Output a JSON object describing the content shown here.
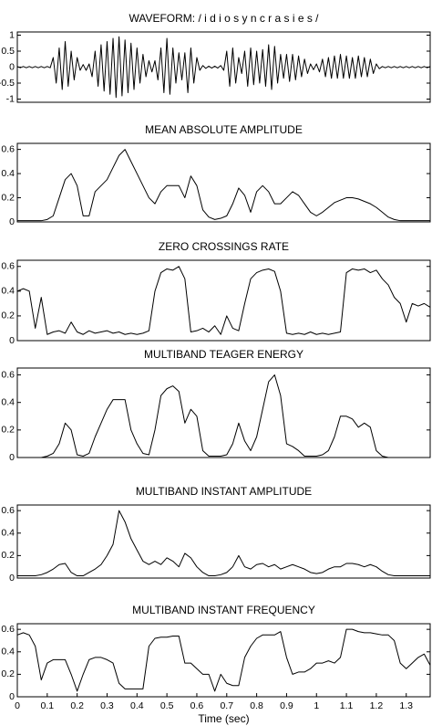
{
  "chart_data": [
    {
      "type": "line",
      "title": "WAVEFORM: / i d i o s y n c r a s i e s /",
      "xlim": [
        0,
        1.38
      ],
      "ylim": [
        -1.1,
        1.1
      ],
      "yticks": [
        1,
        0.5,
        0,
        -0.5,
        -1
      ],
      "x": [
        0,
        0.01,
        0.02,
        0.03,
        0.04,
        0.05,
        0.06,
        0.07,
        0.08,
        0.09,
        0.1,
        0.11,
        0.12,
        0.13,
        0.14,
        0.15,
        0.16,
        0.17,
        0.18,
        0.19,
        0.2,
        0.21,
        0.22,
        0.23,
        0.24,
        0.25,
        0.26,
        0.27,
        0.28,
        0.29,
        0.3,
        0.31,
        0.32,
        0.33,
        0.34,
        0.35,
        0.36,
        0.37,
        0.38,
        0.39,
        0.4,
        0.41,
        0.42,
        0.43,
        0.44,
        0.45,
        0.46,
        0.47,
        0.48,
        0.49,
        0.5,
        0.51,
        0.52,
        0.53,
        0.54,
        0.55,
        0.56,
        0.57,
        0.58,
        0.59,
        0.6,
        0.61,
        0.62,
        0.63,
        0.64,
        0.65,
        0.66,
        0.67,
        0.68,
        0.69,
        0.7,
        0.71,
        0.72,
        0.73,
        0.74,
        0.75,
        0.76,
        0.77,
        0.78,
        0.79,
        0.8,
        0.81,
        0.82,
        0.83,
        0.84,
        0.85,
        0.86,
        0.87,
        0.88,
        0.89,
        0.9,
        0.91,
        0.92,
        0.93,
        0.94,
        0.95,
        0.96,
        0.97,
        0.98,
        0.99,
        1.0,
        1.01,
        1.02,
        1.03,
        1.04,
        1.05,
        1.06,
        1.07,
        1.08,
        1.09,
        1.1,
        1.11,
        1.12,
        1.13,
        1.14,
        1.15,
        1.16,
        1.17,
        1.18,
        1.19,
        1.2,
        1.21,
        1.22,
        1.23,
        1.24,
        1.25,
        1.26,
        1.27,
        1.28,
        1.29,
        1.3,
        1.31,
        1.32,
        1.33,
        1.34,
        1.35,
        1.36,
        1.37,
        1.38
      ],
      "values": [
        0.02,
        -0.02,
        0.02,
        -0.02,
        0.02,
        -0.02,
        0.02,
        -0.02,
        0.02,
        -0.02,
        0.02,
        -0.02,
        0.3,
        -0.5,
        0.6,
        -0.7,
        0.8,
        -0.6,
        0.5,
        -0.4,
        0.3,
        -0.1,
        0.08,
        -0.1,
        0.1,
        -0.3,
        0.5,
        -0.6,
        0.7,
        -0.75,
        0.8,
        -0.85,
        0.9,
        -0.95,
        0.95,
        -0.9,
        0.85,
        -0.8,
        0.75,
        -0.7,
        0.6,
        -0.5,
        0.4,
        -0.3,
        0.2,
        -0.15,
        0.2,
        -0.4,
        0.6,
        -0.8,
        0.9,
        -0.85,
        0.6,
        -0.5,
        0.45,
        -0.4,
        0.45,
        -0.8,
        0.6,
        -0.5,
        0.3,
        -0.1,
        0.05,
        -0.04,
        0.03,
        -0.03,
        0.03,
        -0.03,
        0.05,
        -0.1,
        0.5,
        -0.6,
        0.6,
        -0.5,
        0.3,
        -0.2,
        0.5,
        -0.6,
        0.6,
        -0.55,
        0.5,
        -0.5,
        0.55,
        -0.6,
        0.7,
        -0.7,
        0.65,
        -0.5,
        0.4,
        -0.35,
        0.4,
        -0.45,
        0.4,
        -0.4,
        0.35,
        -0.3,
        0.25,
        -0.2,
        0.1,
        -0.08,
        0.1,
        -0.15,
        0.25,
        -0.3,
        0.3,
        -0.35,
        0.35,
        -0.35,
        0.4,
        -0.35,
        0.35,
        -0.35,
        0.3,
        -0.35,
        0.35,
        -0.3,
        0.3,
        -0.3,
        0.25,
        -0.2,
        0.1,
        -0.05,
        0.02,
        -0.02,
        0.02,
        -0.02,
        0.02,
        -0.02,
        0.02,
        -0.02,
        0.02,
        -0.02,
        0.02,
        -0.02,
        0.02,
        -0.02,
        0.02,
        -0.02,
        0.02
      ]
    },
    {
      "type": "line",
      "title": "MEAN ABSOLUTE AMPLITUDE",
      "xlim": [
        0,
        1.38
      ],
      "ylim": [
        0,
        0.65
      ],
      "yticks": [
        0,
        0.2,
        0.4,
        0.6
      ],
      "x": [
        0,
        0.02,
        0.04,
        0.06,
        0.08,
        0.1,
        0.12,
        0.14,
        0.16,
        0.18,
        0.2,
        0.22,
        0.24,
        0.26,
        0.28,
        0.3,
        0.32,
        0.34,
        0.36,
        0.38,
        0.4,
        0.42,
        0.44,
        0.46,
        0.48,
        0.5,
        0.52,
        0.54,
        0.56,
        0.58,
        0.6,
        0.62,
        0.64,
        0.66,
        0.68,
        0.7,
        0.72,
        0.74,
        0.76,
        0.78,
        0.8,
        0.82,
        0.84,
        0.86,
        0.88,
        0.9,
        0.92,
        0.94,
        0.96,
        0.98,
        1.0,
        1.02,
        1.04,
        1.06,
        1.08,
        1.1,
        1.12,
        1.14,
        1.16,
        1.18,
        1.2,
        1.22,
        1.24,
        1.26,
        1.28,
        1.3,
        1.32,
        1.34,
        1.36,
        1.38
      ],
      "values": [
        0.01,
        0.01,
        0.01,
        0.01,
        0.01,
        0.02,
        0.05,
        0.2,
        0.35,
        0.4,
        0.3,
        0.05,
        0.05,
        0.25,
        0.3,
        0.35,
        0.45,
        0.55,
        0.6,
        0.5,
        0.4,
        0.3,
        0.2,
        0.15,
        0.25,
        0.3,
        0.3,
        0.3,
        0.2,
        0.38,
        0.3,
        0.1,
        0.04,
        0.02,
        0.03,
        0.05,
        0.15,
        0.28,
        0.22,
        0.08,
        0.25,
        0.3,
        0.25,
        0.15,
        0.15,
        0.2,
        0.25,
        0.22,
        0.15,
        0.08,
        0.05,
        0.08,
        0.12,
        0.16,
        0.18,
        0.2,
        0.2,
        0.19,
        0.17,
        0.15,
        0.12,
        0.08,
        0.04,
        0.02,
        0.01,
        0.01,
        0.01,
        0.01,
        0.01,
        0.01
      ]
    },
    {
      "type": "line",
      "title": "ZERO CROSSINGS RATE",
      "xlim": [
        0,
        1.38
      ],
      "ylim": [
        0,
        0.65
      ],
      "yticks": [
        0,
        0.2,
        0.4,
        0.6
      ],
      "x": [
        0,
        0.02,
        0.04,
        0.06,
        0.08,
        0.1,
        0.12,
        0.14,
        0.16,
        0.18,
        0.2,
        0.22,
        0.24,
        0.26,
        0.28,
        0.3,
        0.32,
        0.34,
        0.36,
        0.38,
        0.4,
        0.42,
        0.44,
        0.46,
        0.48,
        0.5,
        0.52,
        0.54,
        0.56,
        0.58,
        0.6,
        0.62,
        0.64,
        0.66,
        0.68,
        0.7,
        0.72,
        0.74,
        0.76,
        0.78,
        0.8,
        0.82,
        0.84,
        0.86,
        0.88,
        0.9,
        0.92,
        0.94,
        0.96,
        0.98,
        1.0,
        1.02,
        1.04,
        1.06,
        1.08,
        1.1,
        1.12,
        1.14,
        1.16,
        1.18,
        1.2,
        1.22,
        1.24,
        1.26,
        1.28,
        1.3,
        1.32,
        1.34,
        1.36,
        1.38
      ],
      "values": [
        0.4,
        0.42,
        0.4,
        0.1,
        0.35,
        0.05,
        0.07,
        0.08,
        0.06,
        0.15,
        0.07,
        0.05,
        0.08,
        0.06,
        0.07,
        0.08,
        0.06,
        0.07,
        0.05,
        0.06,
        0.05,
        0.06,
        0.08,
        0.4,
        0.55,
        0.58,
        0.57,
        0.6,
        0.5,
        0.07,
        0.08,
        0.1,
        0.07,
        0.12,
        0.05,
        0.2,
        0.1,
        0.08,
        0.3,
        0.5,
        0.55,
        0.57,
        0.58,
        0.56,
        0.4,
        0.06,
        0.05,
        0.06,
        0.05,
        0.07,
        0.05,
        0.06,
        0.05,
        0.06,
        0.07,
        0.55,
        0.58,
        0.57,
        0.58,
        0.55,
        0.57,
        0.5,
        0.45,
        0.35,
        0.3,
        0.15,
        0.3,
        0.28,
        0.3,
        0.27
      ]
    },
    {
      "type": "line",
      "title": "MULTIBAND TEAGER ENERGY",
      "xlim": [
        0,
        1.38
      ],
      "ylim": [
        0,
        0.65
      ],
      "yticks": [
        0,
        0.2,
        0.4,
        0.6
      ],
      "x": [
        0,
        0.02,
        0.04,
        0.06,
        0.08,
        0.1,
        0.12,
        0.14,
        0.16,
        0.18,
        0.2,
        0.22,
        0.24,
        0.26,
        0.28,
        0.3,
        0.32,
        0.34,
        0.36,
        0.38,
        0.4,
        0.42,
        0.44,
        0.46,
        0.48,
        0.5,
        0.52,
        0.54,
        0.56,
        0.58,
        0.6,
        0.62,
        0.64,
        0.66,
        0.68,
        0.7,
        0.72,
        0.74,
        0.76,
        0.78,
        0.8,
        0.82,
        0.84,
        0.86,
        0.88,
        0.9,
        0.92,
        0.94,
        0.96,
        0.98,
        1.0,
        1.02,
        1.04,
        1.06,
        1.08,
        1.1,
        1.12,
        1.14,
        1.16,
        1.18,
        1.2,
        1.22,
        1.24,
        1.26,
        1.28,
        1.3,
        1.32,
        1.34,
        1.36,
        1.38
      ],
      "values": [
        0,
        0,
        0,
        0,
        0,
        0.01,
        0.03,
        0.1,
        0.25,
        0.2,
        0.02,
        0.01,
        0.03,
        0.15,
        0.25,
        0.35,
        0.42,
        0.42,
        0.42,
        0.2,
        0.1,
        0.03,
        0.02,
        0.2,
        0.45,
        0.5,
        0.52,
        0.48,
        0.25,
        0.35,
        0.3,
        0.05,
        0.01,
        0.01,
        0.01,
        0.02,
        0.1,
        0.25,
        0.12,
        0.05,
        0.15,
        0.35,
        0.55,
        0.6,
        0.45,
        0.1,
        0.08,
        0.05,
        0.01,
        0.01,
        0.01,
        0.02,
        0.05,
        0.15,
        0.3,
        0.3,
        0.28,
        0.22,
        0.25,
        0.22,
        0.05,
        0.01,
        0,
        0,
        0,
        0,
        0,
        0,
        0,
        0
      ]
    },
    {
      "type": "line",
      "title": "MULTIBAND INSTANT AMPLITUDE",
      "xlim": [
        0,
        1.38
      ],
      "ylim": [
        0,
        0.65
      ],
      "yticks": [
        0,
        0.2,
        0.4,
        0.6
      ],
      "x": [
        0,
        0.02,
        0.04,
        0.06,
        0.08,
        0.1,
        0.12,
        0.14,
        0.16,
        0.18,
        0.2,
        0.22,
        0.24,
        0.26,
        0.28,
        0.3,
        0.32,
        0.34,
        0.36,
        0.38,
        0.4,
        0.42,
        0.44,
        0.46,
        0.48,
        0.5,
        0.52,
        0.54,
        0.56,
        0.58,
        0.6,
        0.62,
        0.64,
        0.66,
        0.68,
        0.7,
        0.72,
        0.74,
        0.76,
        0.78,
        0.8,
        0.82,
        0.84,
        0.86,
        0.88,
        0.9,
        0.92,
        0.94,
        0.96,
        0.98,
        1.0,
        1.02,
        1.04,
        1.06,
        1.08,
        1.1,
        1.12,
        1.14,
        1.16,
        1.18,
        1.2,
        1.22,
        1.24,
        1.26,
        1.28,
        1.3,
        1.32,
        1.34,
        1.36,
        1.38
      ],
      "values": [
        0.02,
        0.02,
        0.02,
        0.02,
        0.03,
        0.05,
        0.08,
        0.12,
        0.13,
        0.05,
        0.02,
        0.02,
        0.05,
        0.08,
        0.12,
        0.2,
        0.3,
        0.6,
        0.5,
        0.35,
        0.25,
        0.15,
        0.12,
        0.15,
        0.12,
        0.18,
        0.15,
        0.1,
        0.22,
        0.18,
        0.1,
        0.05,
        0.02,
        0.02,
        0.03,
        0.05,
        0.1,
        0.2,
        0.1,
        0.08,
        0.12,
        0.13,
        0.1,
        0.12,
        0.08,
        0.1,
        0.12,
        0.1,
        0.08,
        0.05,
        0.04,
        0.05,
        0.08,
        0.1,
        0.1,
        0.13,
        0.13,
        0.12,
        0.1,
        0.12,
        0.1,
        0.06,
        0.03,
        0.02,
        0.02,
        0.02,
        0.02,
        0.02,
        0.02,
        0.02
      ]
    },
    {
      "type": "line",
      "title": "MULTIBAND INSTANT FREQUENCY",
      "xlabel": "Time (sec)",
      "xlim": [
        0,
        1.38
      ],
      "ylim": [
        0,
        0.65
      ],
      "yticks": [
        0,
        0.2,
        0.4,
        0.6
      ],
      "xticks": [
        0,
        0.1,
        0.2,
        0.3,
        0.4,
        0.5,
        0.6,
        0.7,
        0.8,
        0.9,
        1,
        1.1,
        1.2,
        1.3
      ],
      "x": [
        0,
        0.02,
        0.04,
        0.06,
        0.08,
        0.1,
        0.12,
        0.14,
        0.16,
        0.18,
        0.2,
        0.22,
        0.24,
        0.26,
        0.28,
        0.3,
        0.32,
        0.34,
        0.36,
        0.38,
        0.4,
        0.42,
        0.44,
        0.46,
        0.48,
        0.5,
        0.52,
        0.54,
        0.56,
        0.58,
        0.6,
        0.62,
        0.64,
        0.66,
        0.68,
        0.7,
        0.72,
        0.74,
        0.76,
        0.78,
        0.8,
        0.82,
        0.84,
        0.86,
        0.88,
        0.9,
        0.92,
        0.94,
        0.96,
        0.98,
        1.0,
        1.02,
        1.04,
        1.06,
        1.08,
        1.1,
        1.12,
        1.14,
        1.16,
        1.18,
        1.2,
        1.22,
        1.24,
        1.26,
        1.28,
        1.3,
        1.32,
        1.34,
        1.36,
        1.38
      ],
      "values": [
        0.55,
        0.57,
        0.55,
        0.45,
        0.15,
        0.3,
        0.33,
        0.33,
        0.33,
        0.2,
        0.05,
        0.2,
        0.33,
        0.35,
        0.35,
        0.33,
        0.3,
        0.12,
        0.07,
        0.07,
        0.07,
        0.07,
        0.45,
        0.52,
        0.53,
        0.53,
        0.54,
        0.54,
        0.3,
        0.3,
        0.25,
        0.2,
        0.2,
        0.05,
        0.2,
        0.12,
        0.1,
        0.1,
        0.35,
        0.45,
        0.52,
        0.55,
        0.55,
        0.55,
        0.58,
        0.35,
        0.2,
        0.22,
        0.22,
        0.25,
        0.3,
        0.3,
        0.32,
        0.3,
        0.35,
        0.6,
        0.6,
        0.58,
        0.57,
        0.57,
        0.56,
        0.55,
        0.55,
        0.5,
        0.3,
        0.25,
        0.3,
        0.35,
        0.38,
        0.28
      ]
    }
  ]
}
